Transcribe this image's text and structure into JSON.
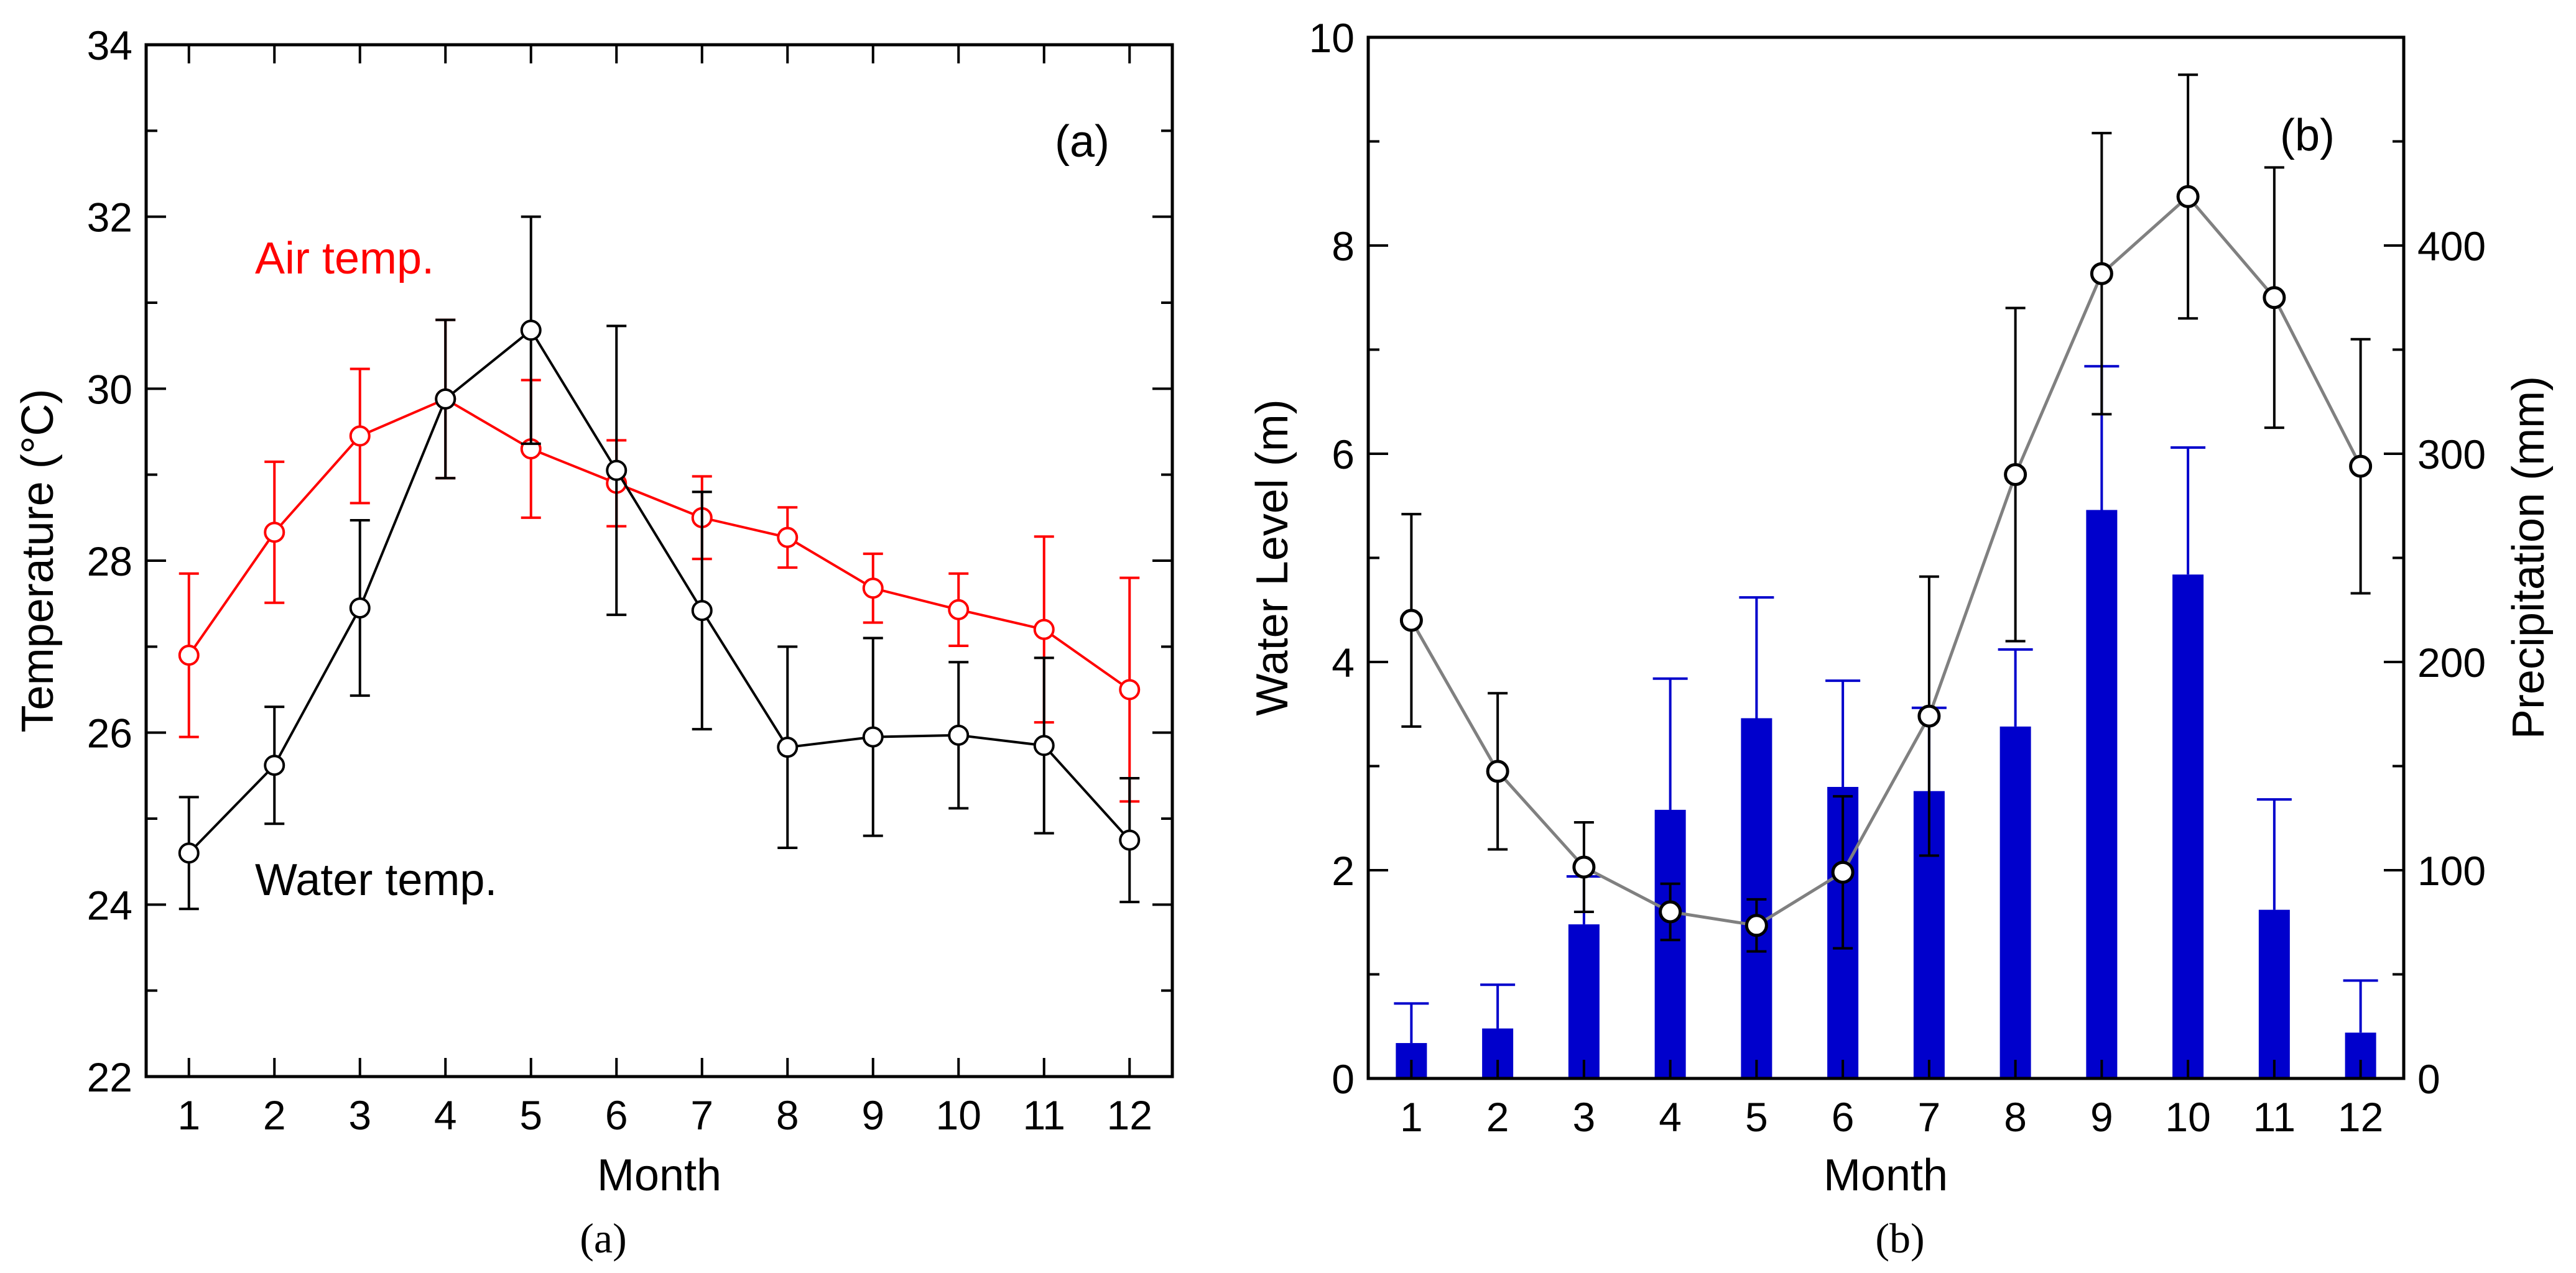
{
  "chart_data": [
    {
      "id": "a",
      "type": "line",
      "panel_label": "(a)",
      "caption": "(a)",
      "xlabel": "Month",
      "ylabel": "Temperature (°C)",
      "x": [
        1,
        2,
        3,
        4,
        5,
        6,
        7,
        8,
        9,
        10,
        11,
        12
      ],
      "xlim": [
        0.5,
        12.5
      ],
      "ylim": [
        22,
        34
      ],
      "yticks": [
        22,
        24,
        26,
        28,
        30,
        32,
        34
      ],
      "grid": false,
      "series": [
        {
          "name": "Air temp.",
          "color": "#ff0000",
          "marker": "open-circle",
          "values": [
            26.9,
            28.33,
            29.45,
            29.88,
            29.3,
            28.9,
            28.5,
            28.27,
            27.68,
            27.43,
            27.2,
            26.5
          ],
          "error": [
            0.95,
            0.82,
            0.78,
            0.92,
            0.8,
            0.5,
            0.48,
            0.35,
            0.4,
            0.42,
            1.08,
            1.3
          ]
        },
        {
          "name": "Water temp.",
          "color": "#000000",
          "marker": "open-circle",
          "values": [
            24.6,
            25.62,
            27.45,
            29.88,
            30.68,
            29.05,
            27.42,
            25.83,
            25.95,
            25.97,
            25.85,
            24.75
          ],
          "error": [
            0.65,
            0.68,
            1.02,
            0.92,
            1.32,
            1.68,
            1.38,
            1.17,
            1.15,
            0.85,
            1.02,
            0.72
          ]
        }
      ],
      "annotations": [
        {
          "text": "Air temp.",
          "color": "#ff0000"
        },
        {
          "text": "Water temp.",
          "color": "#000000"
        }
      ]
    },
    {
      "id": "b",
      "type": "bar+line",
      "panel_label": "(b)",
      "caption": "(b)",
      "xlabel": "Month",
      "ylabel": "Water Level (m)",
      "y2label": "Precipitation (mm)",
      "x": [
        1,
        2,
        3,
        4,
        5,
        6,
        7,
        8,
        9,
        10,
        11,
        12
      ],
      "xlim": [
        0.5,
        12.5
      ],
      "ylim": [
        0,
        10
      ],
      "yticks": [
        0,
        2,
        4,
        6,
        8,
        10
      ],
      "y2lim": [
        0,
        500
      ],
      "y2ticks": [
        0,
        100,
        200,
        300,
        400
      ],
      "grid": false,
      "series": [
        {
          "name": "Water Level",
          "axis": "left",
          "kind": "line",
          "color": "#808080",
          "marker": "open-circle",
          "values": [
            4.4,
            2.95,
            2.03,
            1.6,
            1.47,
            1.98,
            3.48,
            5.8,
            7.73,
            8.47,
            7.5,
            5.88
          ],
          "error": [
            1.02,
            0.75,
            0.43,
            0.27,
            0.25,
            0.73,
            1.34,
            1.6,
            1.35,
            1.17,
            1.25,
            1.22
          ]
        },
        {
          "name": "Precipitation",
          "axis": "right",
          "kind": "bar",
          "color": "#0000cc",
          "values": [
            17,
            24,
            74,
            129,
            173,
            140,
            138,
            169,
            273,
            242,
            81,
            22
          ],
          "error": [
            19,
            21,
            23,
            63,
            58,
            51,
            40,
            37,
            69,
            61,
            53,
            25
          ]
        }
      ]
    }
  ]
}
